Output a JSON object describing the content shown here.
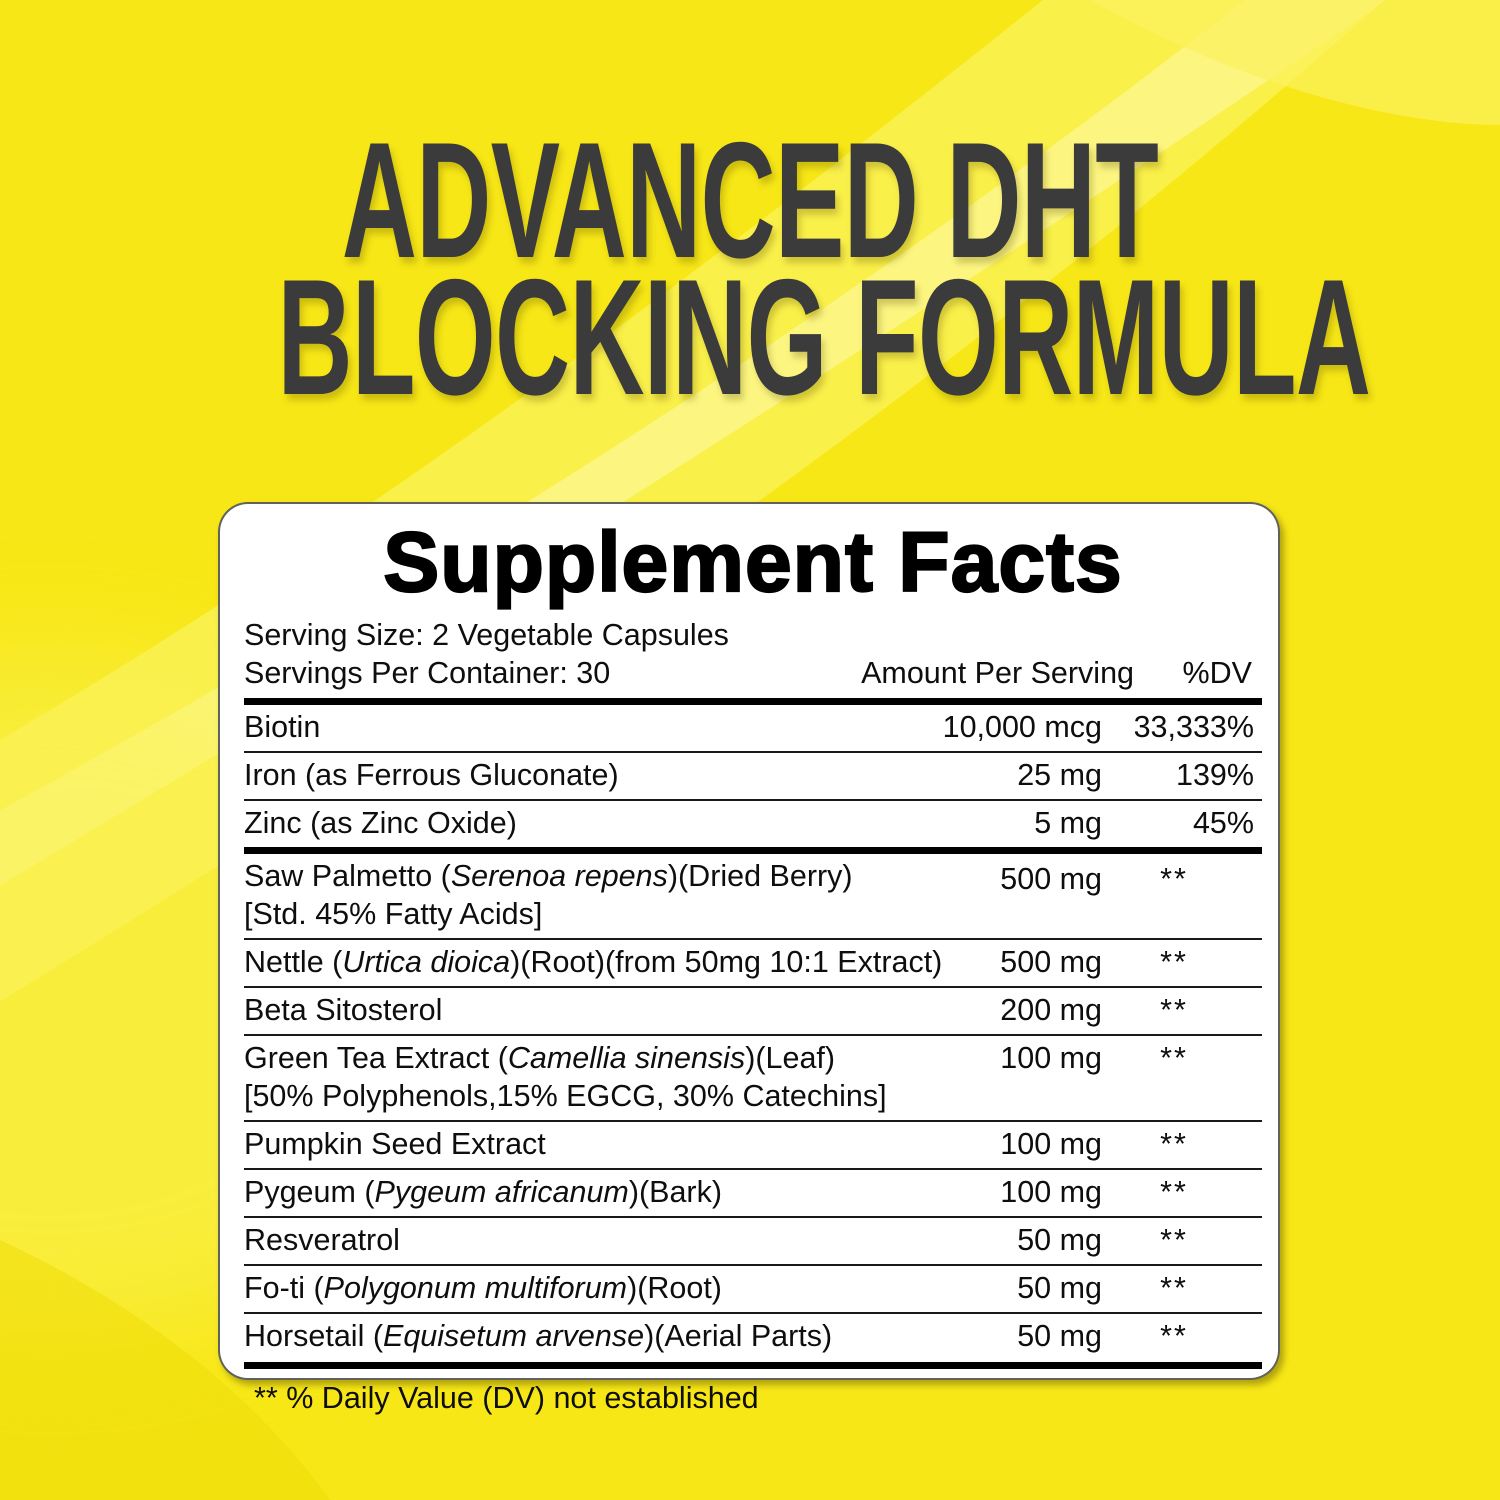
{
  "page": {
    "background_color": "#F7E716",
    "highlight_color": "#FBF35C",
    "glare_color": "#FDF78E",
    "shade_color": "#EFDC08",
    "card_color": "#FFFFFF",
    "rule_color": "#000000"
  },
  "hero": {
    "title_line1": "ADVANCED DHT",
    "title_line2": "BLOCKING FORMULA",
    "text_color": "#3B3B3B"
  },
  "panel": {
    "title": "Supplement Facts",
    "serving_size": "Serving Size: 2 Vegetable Capsules",
    "servings_per_container": "Servings Per Container: 30",
    "amount_header": "Amount Per Serving",
    "dv_header": "%DV",
    "footnote": "** % Daily Value (DV) not established",
    "rows": [
      {
        "name": [
          {
            "t": "Biotin"
          }
        ],
        "amount": "10,000 mcg",
        "dv": "33,333%"
      },
      {
        "name": [
          {
            "t": "Iron (as Ferrous Gluconate)"
          }
        ],
        "amount": "25 mg",
        "dv": "139%"
      },
      {
        "name": [
          {
            "t": "Zinc (as Zinc Oxide)"
          }
        ],
        "amount": "5 mg",
        "dv": "45%"
      },
      {
        "name": [
          {
            "t": "Saw Palmetto ("
          },
          {
            "t": "Serenoa repens",
            "italic": true
          },
          {
            "t": ")(Dried Berry)"
          }
        ],
        "name2": "[Std. 45% Fatty Acids]",
        "amount": "500 mg",
        "dv": "**",
        "thick_before": true
      },
      {
        "name": [
          {
            "t": "Nettle ("
          },
          {
            "t": "Urtica dioica",
            "italic": true
          },
          {
            "t": ")(Root)(from 50mg 10:1 Extract)"
          }
        ],
        "amount": "500 mg",
        "dv": "**"
      },
      {
        "name": [
          {
            "t": "Beta Sitosterol"
          }
        ],
        "amount": "200 mg",
        "dv": "**"
      },
      {
        "name": [
          {
            "t": "Green Tea Extract ("
          },
          {
            "t": "Camellia sinensis",
            "italic": true
          },
          {
            "t": ")(Leaf)"
          }
        ],
        "name2": "[50% Polyphenols,15% EGCG, 30% Catechins]",
        "amount": "100 mg",
        "dv": "**"
      },
      {
        "name": [
          {
            "t": "Pumpkin Seed Extract"
          }
        ],
        "amount": "100 mg",
        "dv": "**"
      },
      {
        "name": [
          {
            "t": "Pygeum ("
          },
          {
            "t": "Pygeum africanum",
            "italic": true
          },
          {
            "t": ")(Bark)"
          }
        ],
        "amount": "100 mg",
        "dv": "**"
      },
      {
        "name": [
          {
            "t": "Resveratrol"
          }
        ],
        "amount": "50 mg",
        "dv": "**"
      },
      {
        "name": [
          {
            "t": "Fo-ti ("
          },
          {
            "t": "Polygonum multiforum",
            "italic": true
          },
          {
            "t": ")(Root)"
          }
        ],
        "amount": "50 mg",
        "dv": "**"
      },
      {
        "name": [
          {
            "t": "Horsetail ("
          },
          {
            "t": "Equisetum arvense",
            "italic": true
          },
          {
            "t": ")(Aerial Parts)"
          }
        ],
        "amount": "50 mg",
        "dv": "**"
      }
    ]
  }
}
